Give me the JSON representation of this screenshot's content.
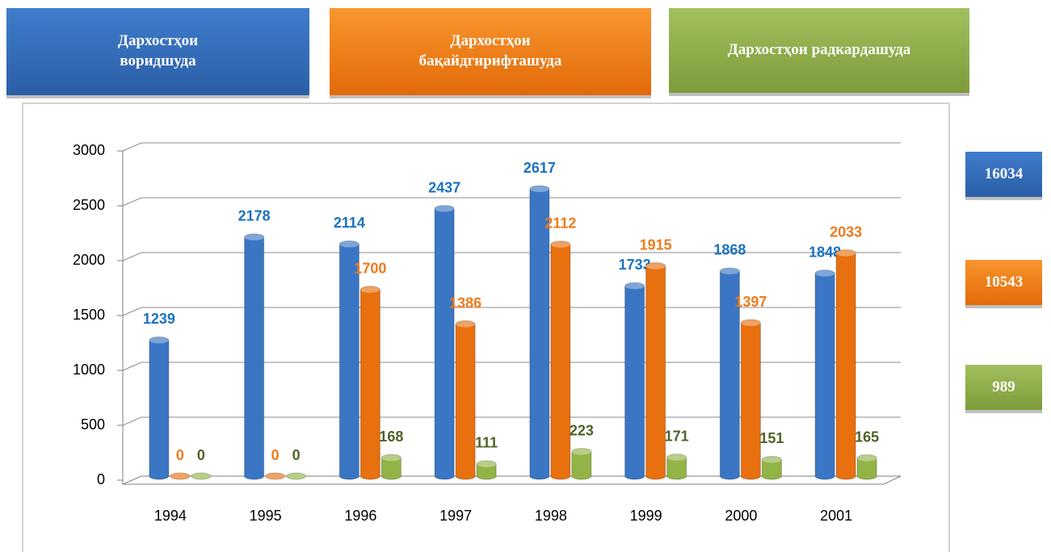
{
  "chart_data": {
    "type": "bar",
    "categories": [
      "1994",
      "1995",
      "1996",
      "1997",
      "1998",
      "1999",
      "2000",
      "2001"
    ],
    "series": [
      {
        "name": "Дархостҳои воридшуда",
        "color": "#3a76c4",
        "label_color": "#1b72c2",
        "values": [
          1239,
          2178,
          2114,
          2437,
          2617,
          1733,
          1868,
          1848
        ],
        "total": 16034
      },
      {
        "name": "Дархостҳои бақайдгирифташуда",
        "color": "#e8700f",
        "label_color": "#f07a1a",
        "values": [
          0,
          0,
          1700,
          1386,
          2112,
          1915,
          1397,
          2033
        ],
        "total": 10543
      },
      {
        "name": "Дархостҳои радкардашуда",
        "color": "#92b447",
        "label_color": "#4f6228",
        "values": [
          0,
          0,
          168,
          111,
          223,
          171,
          151,
          165
        ],
        "total": 989
      }
    ],
    "ylim": [
      0,
      3000
    ],
    "yticks": [
      0,
      500,
      1000,
      1500,
      2000,
      2500,
      3000
    ],
    "grid": true
  }
}
